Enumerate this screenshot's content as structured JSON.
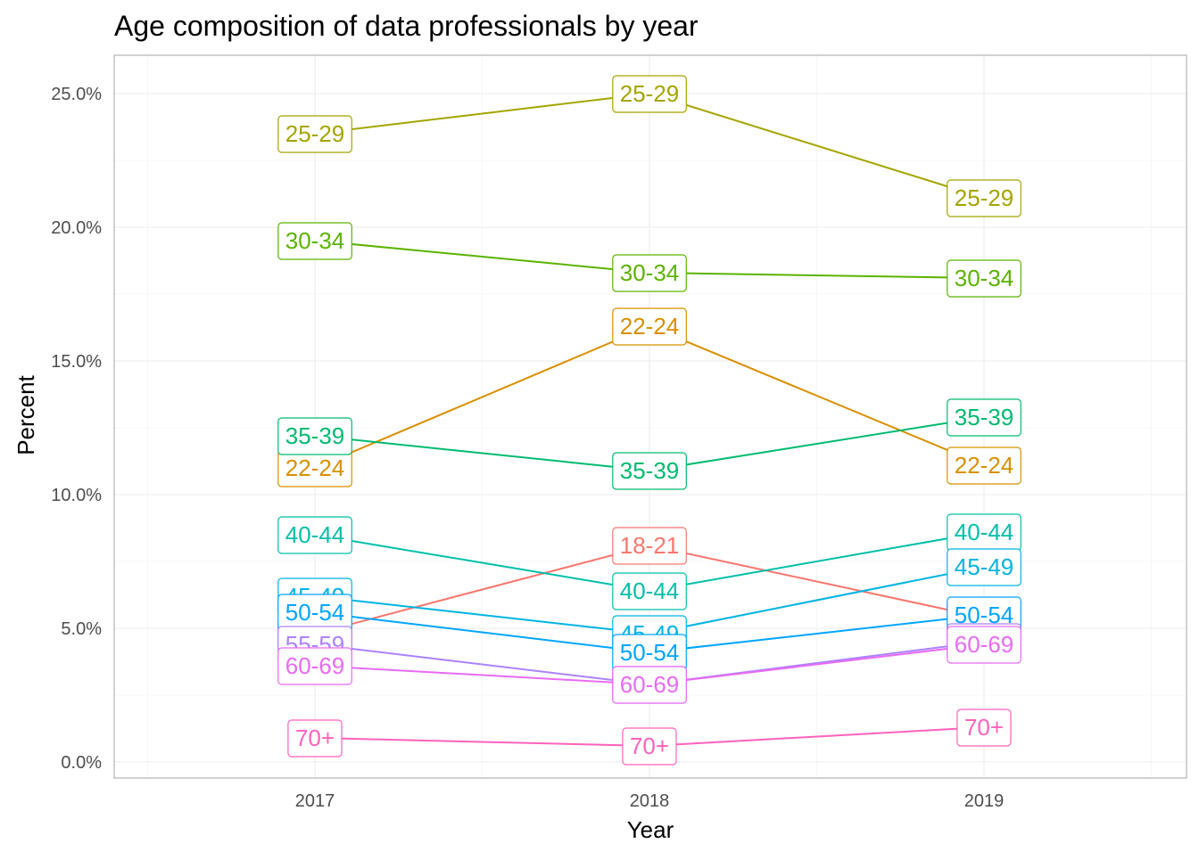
{
  "chart_data": {
    "type": "line",
    "title": "Age composition of data professionals by year",
    "xlabel": "Year",
    "ylabel": "Percent",
    "x": [
      "2017",
      "2018",
      "2019"
    ],
    "ylim": [
      0,
      25.0
    ],
    "yticks": [
      0,
      5,
      10,
      15,
      20,
      25
    ],
    "ytick_labels": [
      "0.0%",
      "5.0%",
      "10.0%",
      "15.0%",
      "20.0%",
      "25.0%"
    ],
    "grid": true,
    "legend": "none",
    "series": [
      {
        "name": "18-21",
        "color": "#F8766D",
        "values": [
          4.8,
          8.1,
          5.4
        ]
      },
      {
        "name": "22-24",
        "color": "#D89000",
        "values": [
          11.0,
          16.3,
          11.1
        ]
      },
      {
        "name": "25-29",
        "color": "#A3A500",
        "values": [
          23.5,
          25.0,
          21.1
        ]
      },
      {
        "name": "30-34",
        "color": "#5BB300",
        "values": [
          19.5,
          18.3,
          18.1
        ]
      },
      {
        "name": "35-39",
        "color": "#00BA6F",
        "values": [
          12.2,
          10.9,
          12.9
        ]
      },
      {
        "name": "40-44",
        "color": "#00BFA8",
        "values": [
          8.5,
          6.4,
          8.6
        ]
      },
      {
        "name": "45-49",
        "color": "#00B4E3",
        "values": [
          6.2,
          4.8,
          7.3
        ]
      },
      {
        "name": "50-54",
        "color": "#00A5FF",
        "values": [
          5.6,
          4.1,
          5.5
        ]
      },
      {
        "name": "55-59",
        "color": "#AB82FF",
        "values": [
          4.4,
          2.9,
          4.5
        ]
      },
      {
        "name": "60-69",
        "color": "#E76BF3",
        "values": [
          3.6,
          2.9,
          4.4
        ]
      },
      {
        "name": "70+",
        "color": "#FF62BC",
        "values": [
          0.9,
          0.6,
          1.3
        ]
      }
    ]
  }
}
